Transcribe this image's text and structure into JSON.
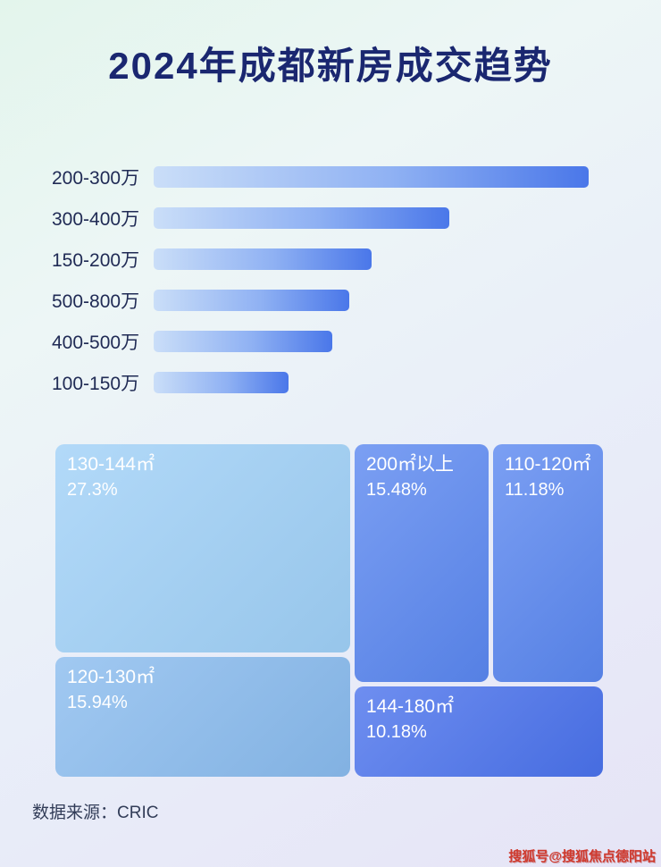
{
  "page": {
    "title": "2024年成都新房成交趋势",
    "source_label": "数据来源：CRIC",
    "watermark": "搜狐号@搜狐焦点德阳站"
  },
  "chart_data": [
    {
      "type": "bar",
      "orientation": "horizontal",
      "title": "2024年成都新房成交趋势",
      "categories": [
        "200-300万",
        "300-400万",
        "150-200万",
        "500-800万",
        "400-500万",
        "100-150万"
      ],
      "values": [
        100,
        68,
        50,
        45,
        41,
        31
      ],
      "values_unit": "relative length, % of longest bar (no numeric axis shown)",
      "bar_gradient": [
        "#cadef8",
        "#4a77e9"
      ],
      "legend": "none",
      "grid": "off"
    },
    {
      "type": "treemap",
      "items": [
        {
          "label": "130-144㎡",
          "value": "27.3%",
          "color": "#9fd0f7"
        },
        {
          "label": "120-130㎡",
          "value": "15.94%",
          "color": "#89bbee"
        },
        {
          "label": "200㎡以上",
          "value": "15.48%",
          "color": "#5a87f0"
        },
        {
          "label": "110-120㎡",
          "value": "11.18%",
          "color": "#5a87f0"
        },
        {
          "label": "144-180㎡",
          "value": "10.18%",
          "color": "#4a72ec"
        }
      ],
      "text_color": "#ffffff"
    }
  ]
}
